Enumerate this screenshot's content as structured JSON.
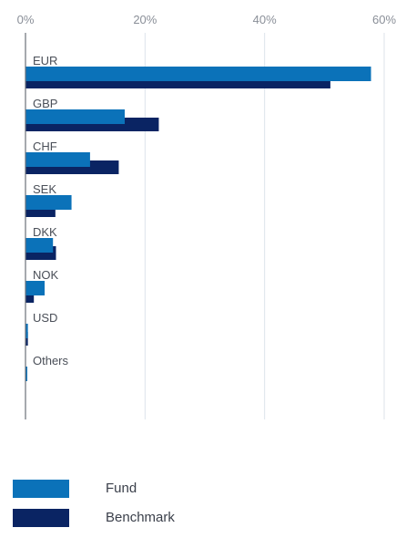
{
  "chart_data": {
    "type": "bar",
    "orientation": "horizontal",
    "categories": [
      "EUR",
      "GBP",
      "CHF",
      "SEK",
      "DKK",
      "NOK",
      "USD",
      "Others"
    ],
    "series": [
      {
        "name": "Fund",
        "color": "#0b72b9",
        "values": [
          57.8,
          16.6,
          10.8,
          7.7,
          4.6,
          3.2,
          0.4,
          0.3
        ]
      },
      {
        "name": "Benchmark",
        "color": "#0a2463",
        "values": [
          51.0,
          22.3,
          15.6,
          5.0,
          5.1,
          1.4,
          0.4,
          0.0
        ]
      }
    ],
    "xlim": [
      0,
      60
    ],
    "xticks": [
      0,
      20,
      40,
      60
    ],
    "tick_format": "%",
    "grid": "vertical",
    "legend_position": "bottom-left"
  }
}
